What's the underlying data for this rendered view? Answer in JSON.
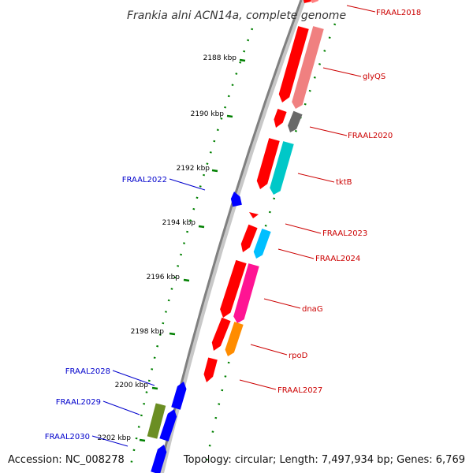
{
  "title": "Frankia alni ACN14a, complete genome",
  "accession": "Accession: NC_008278",
  "topology": "Topology: circular; Length: 7,497,934 bp; Genes: 6,769",
  "colors": {
    "forward_gene": "#ff0000",
    "reverse_gene": "#0000ff",
    "label_red": "#cc0000",
    "label_blue": "#0000cc",
    "tick": "#008000",
    "backbone": "#808080"
  },
  "ruler_ticks": [
    "2188 kbp",
    "2190 kbp",
    "2192 kbp",
    "2194 kbp",
    "2196 kbp",
    "2198 kbp",
    "2200 kbp",
    "2202 kbp"
  ],
  "genes": [
    {
      "name": "FRAAL2018",
      "strand": "forward",
      "cog_color": "#ff7f7f"
    },
    {
      "name": "glyQS",
      "strand": "forward",
      "cog_color": "#f08080"
    },
    {
      "name": "FRAAL2020",
      "strand": "forward",
      "cog_color": "#696969"
    },
    {
      "name": "tktB",
      "strand": "forward",
      "cog_color": "#00c8c8"
    },
    {
      "name": "FRAAL2022",
      "strand": "reverse",
      "cog_color": ""
    },
    {
      "name": "FRAAL2023",
      "strand": "forward",
      "cog_color": ""
    },
    {
      "name": "FRAAL2024",
      "strand": "forward",
      "cog_color": "#00bfff"
    },
    {
      "name": "dnaG",
      "strand": "forward",
      "cog_color": "#ff1493"
    },
    {
      "name": "rpoD",
      "strand": "forward",
      "cog_color": "#ff8c00"
    },
    {
      "name": "FRAAL2027",
      "strand": "forward",
      "cog_color": ""
    },
    {
      "name": "FRAAL2028",
      "strand": "reverse",
      "cog_color": ""
    },
    {
      "name": "FRAAL2029",
      "strand": "reverse",
      "cog_color": "#6b8e23"
    },
    {
      "name": "FRAAL2030",
      "strand": "reverse",
      "cog_color": ""
    }
  ]
}
